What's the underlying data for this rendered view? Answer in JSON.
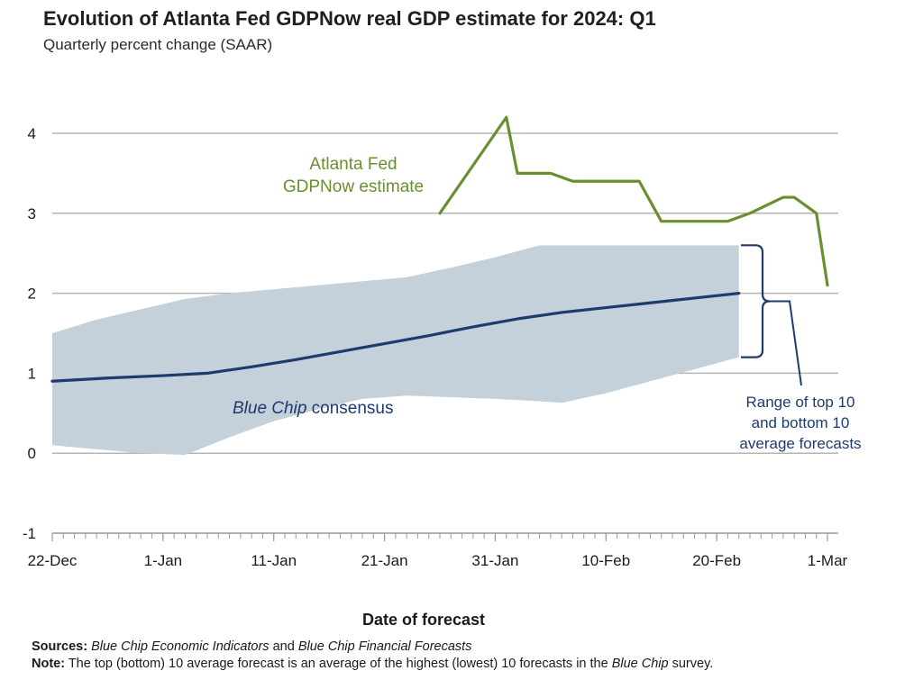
{
  "chart_data": {
    "type": "line",
    "title": "Evolution of Atlanta Fed GDPNow real GDP estimate for 2024: Q1",
    "subtitle": "Quarterly percent change (SAAR)",
    "xlabel": "Date of forecast",
    "ylabel": "",
    "ylim": [
      -1,
      4.4
    ],
    "yticks": [
      -1,
      0,
      1,
      2,
      3,
      4
    ],
    "xlim": [
      0,
      70
    ],
    "xticks": [
      {
        "value": 0,
        "label": "22-Dec"
      },
      {
        "value": 10,
        "label": "1-Jan"
      },
      {
        "value": 20,
        "label": "11-Jan"
      },
      {
        "value": 30,
        "label": "21-Jan"
      },
      {
        "value": 40,
        "label": "31-Jan"
      },
      {
        "value": 50,
        "label": "10-Feb"
      },
      {
        "value": 60,
        "label": "20-Feb"
      },
      {
        "value": 70,
        "label": "1-Mar"
      }
    ],
    "series": [
      {
        "name": "Atlanta Fed GDPNow estimate",
        "color": "#6a8f2f",
        "x": [
          35,
          41,
          42,
          45,
          47,
          49,
          51,
          53,
          55,
          57,
          59,
          61,
          63,
          66,
          67,
          69,
          70
        ],
        "values": [
          3.0,
          4.2,
          3.5,
          3.5,
          3.4,
          3.4,
          3.4,
          3.4,
          2.9,
          2.9,
          2.9,
          2.9,
          3.0,
          3.2,
          3.2,
          3.0,
          2.1
        ]
      },
      {
        "name": "Blue Chip consensus",
        "color": "#1f3a6e",
        "x": [
          0,
          5,
          10,
          14,
          18,
          22,
          26,
          30,
          34,
          38,
          42,
          46,
          50,
          54,
          58,
          62
        ],
        "values": [
          0.9,
          0.94,
          0.97,
          1.0,
          1.08,
          1.17,
          1.27,
          1.37,
          1.47,
          1.58,
          1.68,
          1.76,
          1.82,
          1.88,
          1.94,
          2.0
        ]
      }
    ],
    "range_band": {
      "name": "Range of top 10 and bottom 10 average forecasts",
      "color": "#c4d0da",
      "x": [
        0,
        4,
        8,
        12,
        16,
        20,
        24,
        28,
        32,
        36,
        40,
        44,
        46,
        50,
        54,
        58,
        62
      ],
      "upper": [
        1.5,
        1.67,
        1.8,
        1.93,
        2.0,
        2.05,
        2.1,
        2.15,
        2.2,
        2.32,
        2.45,
        2.6,
        2.6,
        2.6,
        2.6,
        2.6,
        2.6
      ],
      "lower": [
        0.1,
        0.05,
        0.0,
        -0.02,
        0.2,
        0.4,
        0.55,
        0.68,
        0.72,
        0.7,
        0.68,
        0.65,
        0.63,
        0.75,
        0.9,
        1.05,
        1.2
      ]
    },
    "annotations": {
      "gdpnow_label": [
        "Atlanta Fed",
        "GDPNow estimate"
      ],
      "bluechip_label_italic": "Blue Chip",
      "bluechip_label_rest": " consensus",
      "range_label": [
        "Range of top 10",
        "and bottom 10",
        "average forecasts"
      ]
    }
  },
  "footer": {
    "sources_label": "Sources:",
    "sources_italic_1": "Blue Chip Economic Indicators",
    "sources_and": " and ",
    "sources_italic_2": "Blue Chip Financial Forecasts",
    "note_label": "Note:",
    "note_text_1": " The top (bottom) 10 average forecast is an average of the highest (lowest) 10 forecasts in the ",
    "note_italic": "Blue Chip",
    "note_text_2": " survey."
  }
}
